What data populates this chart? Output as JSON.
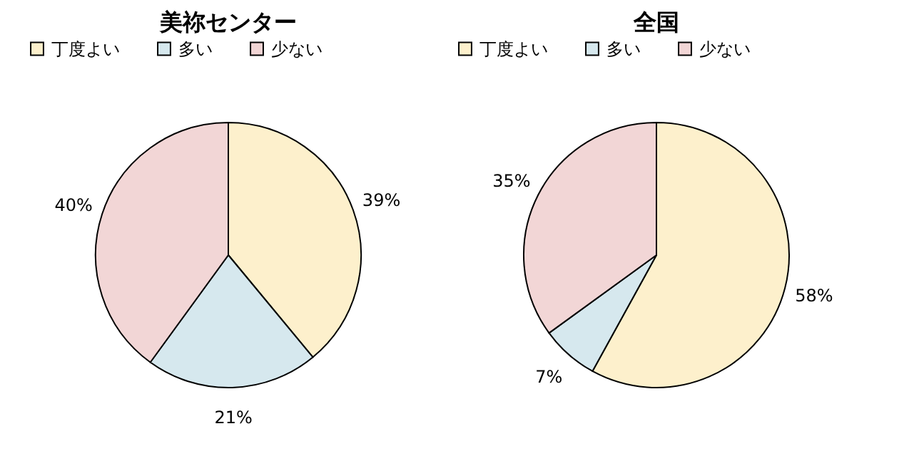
{
  "chart_data": [
    {
      "type": "pie",
      "title": "美祢センター",
      "categories": [
        "丁度よい",
        "多い",
        "少ない"
      ],
      "values": [
        39,
        21,
        40
      ],
      "colors": [
        "#fdf0cc",
        "#d6e8ee",
        "#f2d6d6"
      ],
      "value_labels": [
        "39%",
        "21%",
        "40%"
      ],
      "legend": "top"
    },
    {
      "type": "pie",
      "title": "全国",
      "categories": [
        "丁度よい",
        "多い",
        "少ない"
      ],
      "values": [
        58,
        7,
        35
      ],
      "colors": [
        "#fdf0cc",
        "#d6e8ee",
        "#f2d6d6"
      ],
      "value_labels": [
        "58%",
        "7%",
        "35%"
      ],
      "legend": "top"
    }
  ]
}
